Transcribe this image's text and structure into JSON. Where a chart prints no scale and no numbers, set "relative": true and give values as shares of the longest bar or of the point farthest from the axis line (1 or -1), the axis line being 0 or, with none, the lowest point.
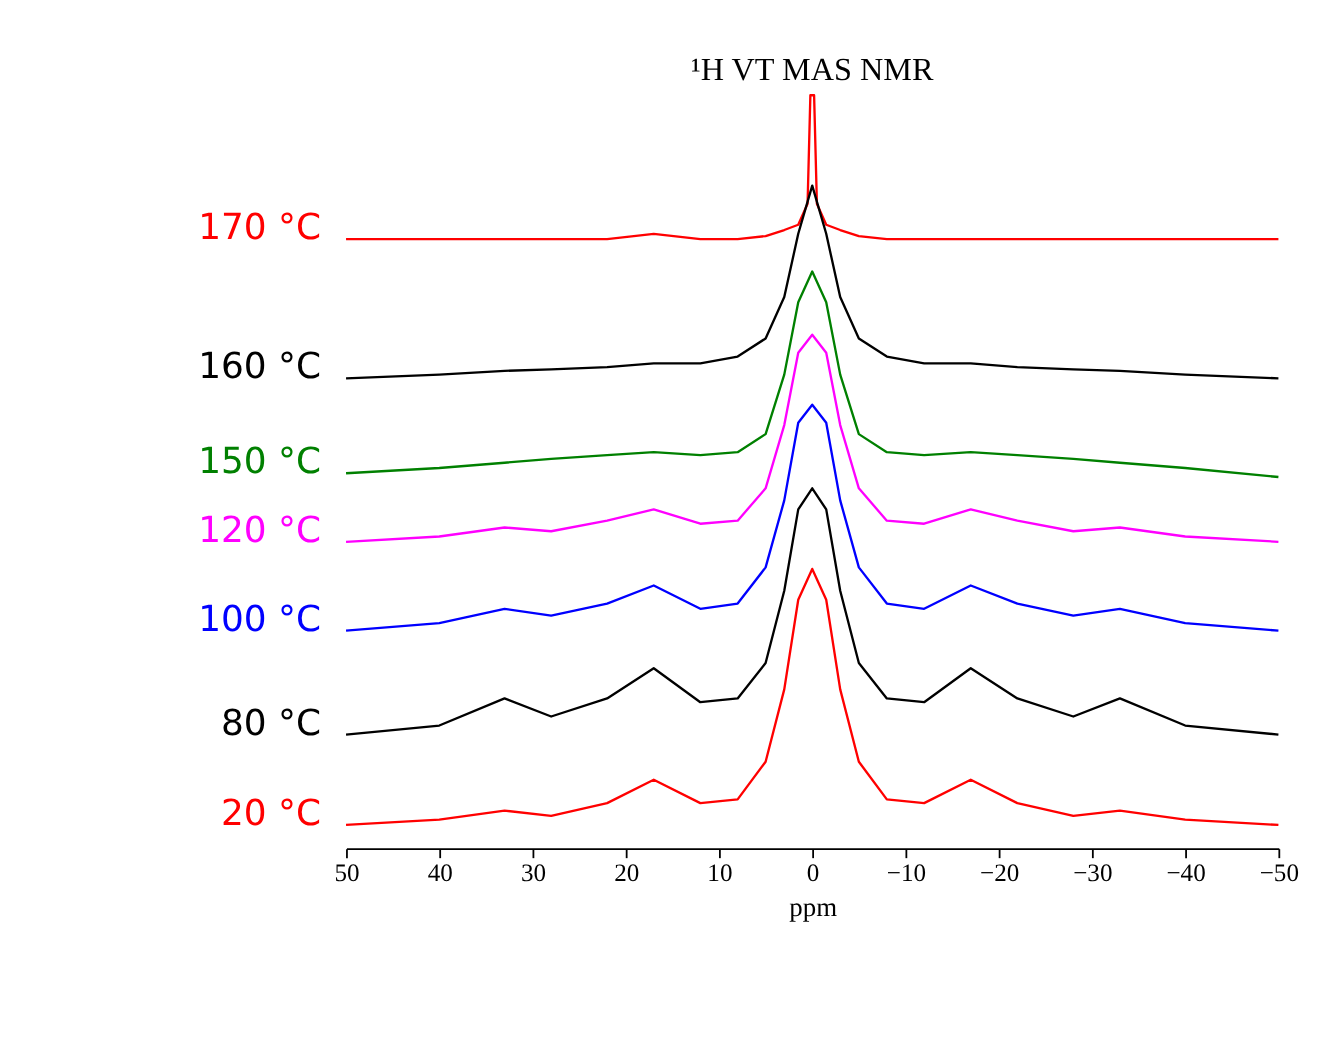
{
  "chart_data": {
    "type": "line",
    "title": "¹H VT MAS NMR",
    "xlabel": "ppm",
    "relative": true,
    "legend": false,
    "grid": false,
    "marker": "none",
    "line_style": "solid",
    "xlim": [
      50,
      -50
    ],
    "xticks": [
      50,
      40,
      30,
      20,
      10,
      0,
      -10,
      -20,
      -30,
      -40,
      -50
    ],
    "x": [
      50,
      40,
      33,
      28,
      22,
      17,
      12,
      8,
      5,
      3,
      1.5,
      0,
      -1.5,
      -3,
      -5,
      -8,
      -12,
      -17,
      -22,
      -28,
      -33,
      -40,
      -50
    ],
    "series": [
      {
        "name": "170 °C",
        "color": "#ff0000",
        "x": [
          50,
          40,
          33,
          28,
          22,
          17,
          12,
          8,
          5,
          3,
          1.5,
          0.5,
          0.2,
          -0.2,
          -0.5,
          -1.5,
          -3,
          -5,
          -8,
          -12,
          -17,
          -22,
          -28,
          -33,
          -40,
          -50
        ],
        "values": [
          0.809,
          0.809,
          0.809,
          0.809,
          0.809,
          0.816,
          0.809,
          0.809,
          0.813,
          0.821,
          0.828,
          0.856,
          1,
          1,
          0.856,
          0.828,
          0.821,
          0.813,
          0.809,
          0.809,
          0.809,
          0.809,
          0.809,
          0.809,
          0.809,
          0.809
        ]
      },
      {
        "name": "160 °C",
        "color": "#000000",
        "values": [
          0.624,
          0.629,
          0.634,
          0.636,
          0.639,
          0.644,
          0.644,
          0.653,
          0.677,
          0.732,
          0.816,
          0.88,
          0.816,
          0.732,
          0.677,
          0.653,
          0.644,
          0.644,
          0.639,
          0.636,
          0.634,
          0.629,
          0.624
        ]
      },
      {
        "name": "150 °C",
        "color": "#008000",
        "values": [
          0.498,
          0.505,
          0.512,
          0.517,
          0.522,
          0.526,
          0.522,
          0.526,
          0.55,
          0.629,
          0.725,
          0.766,
          0.725,
          0.629,
          0.55,
          0.526,
          0.522,
          0.526,
          0.522,
          0.517,
          0.512,
          0.505,
          0.493
        ]
      },
      {
        "name": "120 °C",
        "color": "#ff00ff",
        "values": [
          0.407,
          0.414,
          0.426,
          0.421,
          0.435,
          0.45,
          0.431,
          0.435,
          0.478,
          0.562,
          0.658,
          0.682,
          0.658,
          0.562,
          0.478,
          0.435,
          0.431,
          0.45,
          0.435,
          0.421,
          0.426,
          0.414,
          0.407
        ]
      },
      {
        "name": "100 °C",
        "color": "#0000ff",
        "values": [
          0.289,
          0.299,
          0.318,
          0.309,
          0.325,
          0.349,
          0.318,
          0.325,
          0.373,
          0.462,
          0.565,
          0.589,
          0.565,
          0.462,
          0.373,
          0.325,
          0.318,
          0.349,
          0.325,
          0.309,
          0.318,
          0.299,
          0.289
        ]
      },
      {
        "name": "80 °C",
        "color": "#000000",
        "values": [
          0.151,
          0.163,
          0.199,
          0.175,
          0.199,
          0.239,
          0.194,
          0.199,
          0.246,
          0.342,
          0.45,
          0.478,
          0.45,
          0.342,
          0.246,
          0.199,
          0.194,
          0.239,
          0.199,
          0.175,
          0.199,
          0.163,
          0.151
        ]
      },
      {
        "name": "20 °C",
        "color": "#ff0000",
        "values": [
          0.031,
          0.038,
          0.05,
          0.043,
          0.06,
          0.091,
          0.06,
          0.065,
          0.115,
          0.211,
          0.33,
          0.371,
          0.33,
          0.211,
          0.115,
          0.065,
          0.06,
          0.091,
          0.06,
          0.043,
          0.05,
          0.038,
          0.031
        ]
      }
    ]
  }
}
